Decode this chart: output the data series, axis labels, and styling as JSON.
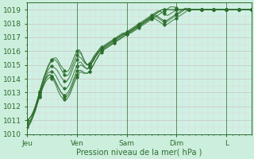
{
  "title": "Pression niveau de la mer( hPa )",
  "fig_bg": "#cceedd",
  "plot_bg": "#d0f0e4",
  "line_color": "#2d6e2d",
  "ylim": [
    1010.0,
    1019.5
  ],
  "yticks": [
    1010,
    1011,
    1012,
    1013,
    1014,
    1015,
    1016,
    1017,
    1018,
    1019
  ],
  "day_labels": [
    "Jeu",
    "Ven",
    "Sam",
    "Dim",
    "L"
  ],
  "day_positions": [
    0,
    24,
    48,
    72,
    96
  ],
  "xlim": [
    0,
    108
  ],
  "n_points": 109,
  "lines": [
    [
      1011.0,
      1011.1,
      1011.3,
      1011.6,
      1012.0,
      1012.5,
      1013.1,
      1013.6,
      1014.1,
      1014.5,
      1014.9,
      1015.2,
      1015.4,
      1015.5,
      1015.5,
      1015.3,
      1015.0,
      1014.8,
      1014.6,
      1014.5,
      1014.6,
      1014.9,
      1015.3,
      1015.7,
      1016.0,
      1016.1,
      1015.9,
      1015.5,
      1015.2,
      1015.0,
      1015.1,
      1015.3,
      1015.5,
      1015.7,
      1015.9,
      1016.0,
      1016.2,
      1016.3,
      1016.4,
      1016.5,
      1016.6,
      1016.7,
      1016.8,
      1016.9,
      1017.0,
      1017.1,
      1017.2,
      1017.2,
      1017.2,
      1017.3,
      1017.3,
      1017.4,
      1017.5,
      1017.6,
      1017.7,
      1017.8,
      1017.9,
      1018.0,
      1018.1,
      1018.2,
      1018.3,
      1018.4,
      1018.5,
      1018.6,
      1018.7,
      1018.8,
      1018.9,
      1019.0,
      1019.1,
      1019.2,
      1019.2,
      1019.2,
      1019.1,
      1019.0,
      1019.0,
      1019.0,
      1019.1,
      1019.1,
      1019.0,
      1019.0,
      1019.0,
      1019.0,
      1019.0,
      1019.0,
      1019.0,
      1019.0,
      1019.0,
      1019.0,
      1019.0,
      1019.0,
      1019.0,
      1019.0,
      1019.0,
      1019.0,
      1019.0,
      1019.0,
      1019.0,
      1019.0,
      1019.0,
      1019.0,
      1019.0,
      1019.0,
      1019.0,
      1019.0,
      1019.0,
      1019.0,
      1019.0,
      1019.0,
      1019.0
    ],
    [
      1011.0,
      1011.1,
      1011.3,
      1011.6,
      1012.0,
      1012.5,
      1013.0,
      1013.5,
      1014.0,
      1014.4,
      1014.8,
      1015.1,
      1015.3,
      1015.4,
      1015.3,
      1015.1,
      1014.8,
      1014.5,
      1014.3,
      1014.2,
      1014.3,
      1014.6,
      1015.0,
      1015.4,
      1015.7,
      1015.9,
      1015.8,
      1015.5,
      1015.2,
      1015.0,
      1015.1,
      1015.3,
      1015.6,
      1015.8,
      1016.0,
      1016.2,
      1016.3,
      1016.4,
      1016.5,
      1016.6,
      1016.7,
      1016.8,
      1016.9,
      1017.0,
      1017.1,
      1017.2,
      1017.3,
      1017.3,
      1017.3,
      1017.4,
      1017.5,
      1017.6,
      1017.7,
      1017.8,
      1017.9,
      1018.0,
      1018.1,
      1018.2,
      1018.3,
      1018.4,
      1018.5,
      1018.6,
      1018.7,
      1018.8,
      1018.9,
      1019.0,
      1019.0,
      1019.0,
      1019.0,
      1019.0,
      1019.0,
      1019.0,
      1019.0,
      1019.0,
      1019.0,
      1019.0,
      1019.0,
      1019.0,
      1019.0,
      1019.0,
      1019.0,
      1019.0,
      1019.0,
      1019.0,
      1019.0,
      1019.0,
      1019.0,
      1019.0,
      1019.0,
      1019.0,
      1019.0,
      1019.0,
      1019.0,
      1019.0,
      1019.0,
      1019.0,
      1019.0,
      1019.0,
      1019.0,
      1019.0,
      1019.0,
      1019.0,
      1019.0,
      1019.0,
      1019.0,
      1019.0,
      1019.0,
      1019.0,
      1019.0
    ],
    [
      1011.0,
      1011.1,
      1011.3,
      1011.6,
      1012.0,
      1012.5,
      1013.0,
      1013.5,
      1013.9,
      1014.3,
      1014.6,
      1014.8,
      1014.9,
      1014.8,
      1014.7,
      1014.5,
      1014.2,
      1014.0,
      1013.8,
      1013.8,
      1014.0,
      1014.3,
      1014.7,
      1015.1,
      1015.4,
      1015.6,
      1015.5,
      1015.3,
      1015.1,
      1015.0,
      1015.0,
      1015.2,
      1015.4,
      1015.7,
      1015.9,
      1016.1,
      1016.2,
      1016.3,
      1016.4,
      1016.5,
      1016.6,
      1016.7,
      1016.8,
      1016.9,
      1017.0,
      1017.1,
      1017.2,
      1017.3,
      1017.3,
      1017.4,
      1017.5,
      1017.6,
      1017.7,
      1017.8,
      1017.9,
      1018.0,
      1018.1,
      1018.2,
      1018.3,
      1018.4,
      1018.5,
      1018.6,
      1018.7,
      1018.8,
      1018.9,
      1019.0,
      1019.0,
      1019.0,
      1019.0,
      1019.0,
      1019.0,
      1019.0,
      1019.0,
      1019.0,
      1019.0,
      1019.0,
      1019.0,
      1019.0,
      1019.0,
      1019.0,
      1019.0,
      1019.0,
      1019.0,
      1019.0,
      1019.0,
      1019.0,
      1019.0,
      1019.0,
      1019.0,
      1019.0,
      1019.0,
      1019.0,
      1019.0,
      1019.0,
      1019.0,
      1019.0,
      1019.0,
      1019.0,
      1019.0,
      1019.0,
      1019.0,
      1019.0,
      1019.0,
      1019.0,
      1019.0,
      1019.0,
      1019.0,
      1019.0,
      1019.0
    ],
    [
      1010.7,
      1010.8,
      1011.0,
      1011.4,
      1011.8,
      1012.3,
      1012.8,
      1013.3,
      1013.7,
      1014.1,
      1014.4,
      1014.5,
      1014.5,
      1014.4,
      1014.2,
      1013.9,
      1013.6,
      1013.4,
      1013.3,
      1013.3,
      1013.5,
      1013.8,
      1014.2,
      1014.6,
      1014.9,
      1015.2,
      1015.2,
      1015.0,
      1014.8,
      1014.7,
      1014.8,
      1015.1,
      1015.3,
      1015.6,
      1015.8,
      1016.0,
      1016.1,
      1016.2,
      1016.4,
      1016.5,
      1016.6,
      1016.7,
      1016.8,
      1016.9,
      1017.0,
      1017.1,
      1017.2,
      1017.3,
      1017.4,
      1017.5,
      1017.6,
      1017.7,
      1017.8,
      1017.9,
      1018.0,
      1018.1,
      1018.2,
      1018.3,
      1018.4,
      1018.5,
      1018.6,
      1018.7,
      1018.8,
      1018.9,
      1018.9,
      1018.8,
      1018.7,
      1018.6,
      1018.6,
      1018.7,
      1018.8,
      1018.9,
      1019.0,
      1019.0,
      1019.0,
      1019.0,
      1019.0,
      1019.0,
      1019.0,
      1019.0,
      1019.0,
      1019.0,
      1019.0,
      1019.0,
      1019.0,
      1019.0,
      1019.0,
      1019.0,
      1019.0,
      1019.0,
      1019.0,
      1019.0,
      1019.0,
      1019.0,
      1019.0,
      1019.0,
      1019.0,
      1019.0,
      1019.0,
      1019.0,
      1019.0,
      1019.0,
      1019.0,
      1019.0,
      1019.0,
      1019.0,
      1019.0,
      1019.0,
      1019.0
    ],
    [
      1010.5,
      1010.6,
      1010.9,
      1011.3,
      1011.7,
      1012.2,
      1012.7,
      1013.2,
      1013.6,
      1014.0,
      1014.2,
      1014.3,
      1014.2,
      1014.0,
      1013.7,
      1013.4,
      1013.1,
      1012.9,
      1012.8,
      1012.9,
      1013.1,
      1013.4,
      1013.8,
      1014.2,
      1014.6,
      1014.9,
      1015.0,
      1014.9,
      1014.8,
      1014.7,
      1014.9,
      1015.1,
      1015.3,
      1015.6,
      1015.8,
      1016.0,
      1016.1,
      1016.2,
      1016.3,
      1016.4,
      1016.5,
      1016.6,
      1016.7,
      1016.8,
      1016.9,
      1017.0,
      1017.1,
      1017.2,
      1017.3,
      1017.4,
      1017.5,
      1017.6,
      1017.7,
      1017.8,
      1017.9,
      1018.0,
      1018.1,
      1018.2,
      1018.3,
      1018.4,
      1018.5,
      1018.6,
      1018.6,
      1018.5,
      1018.4,
      1018.3,
      1018.2,
      1018.2,
      1018.3,
      1018.4,
      1018.5,
      1018.6,
      1018.7,
      1018.8,
      1018.9,
      1019.0,
      1019.0,
      1019.0,
      1019.0,
      1019.0,
      1019.0,
      1019.0,
      1019.0,
      1019.0,
      1019.0,
      1019.0,
      1019.0,
      1019.0,
      1019.0,
      1019.0,
      1019.0,
      1019.0,
      1019.0,
      1019.0,
      1019.0,
      1019.0,
      1019.0,
      1019.0,
      1019.0,
      1019.0,
      1019.0,
      1019.0,
      1019.0,
      1019.0,
      1019.0,
      1019.0,
      1019.0,
      1019.0,
      1019.0
    ],
    [
      1010.8,
      1010.9,
      1011.1,
      1011.5,
      1011.9,
      1012.4,
      1012.9,
      1013.3,
      1013.7,
      1014.0,
      1014.2,
      1014.3,
      1014.2,
      1014.0,
      1013.7,
      1013.4,
      1013.1,
      1012.9,
      1012.7,
      1012.7,
      1012.9,
      1013.2,
      1013.6,
      1014.0,
      1014.3,
      1014.6,
      1014.6,
      1014.5,
      1014.4,
      1014.4,
      1014.5,
      1014.7,
      1015.0,
      1015.3,
      1015.6,
      1015.8,
      1016.0,
      1016.1,
      1016.2,
      1016.3,
      1016.4,
      1016.5,
      1016.6,
      1016.7,
      1016.8,
      1016.9,
      1017.0,
      1017.1,
      1017.2,
      1017.3,
      1017.4,
      1017.5,
      1017.6,
      1017.7,
      1017.8,
      1017.9,
      1018.0,
      1018.1,
      1018.2,
      1018.3,
      1018.4,
      1018.5,
      1018.5,
      1018.4,
      1018.3,
      1018.2,
      1018.1,
      1018.1,
      1018.2,
      1018.3,
      1018.4,
      1018.5,
      1018.6,
      1018.7,
      1018.8,
      1018.9,
      1019.0,
      1019.0,
      1019.0,
      1019.0,
      1019.0,
      1019.0,
      1019.0,
      1019.0,
      1019.0,
      1019.0,
      1019.0,
      1019.0,
      1019.0,
      1019.0,
      1019.0,
      1019.0,
      1019.0,
      1019.0,
      1019.0,
      1019.0,
      1019.0,
      1019.0,
      1019.0,
      1019.0,
      1019.0,
      1019.0,
      1019.0,
      1019.0,
      1019.0,
      1019.0,
      1019.0,
      1019.0,
      1019.0
    ],
    [
      1010.6,
      1010.7,
      1011.0,
      1011.3,
      1011.7,
      1012.2,
      1012.7,
      1013.1,
      1013.5,
      1013.8,
      1014.0,
      1014.1,
      1014.0,
      1013.8,
      1013.5,
      1013.1,
      1012.8,
      1012.6,
      1012.5,
      1012.5,
      1012.7,
      1013.0,
      1013.4,
      1013.8,
      1014.1,
      1014.4,
      1014.5,
      1014.4,
      1014.4,
      1014.4,
      1014.5,
      1014.8,
      1015.0,
      1015.3,
      1015.5,
      1015.8,
      1015.9,
      1016.1,
      1016.2,
      1016.3,
      1016.4,
      1016.5,
      1016.6,
      1016.7,
      1016.8,
      1016.9,
      1017.0,
      1017.1,
      1017.2,
      1017.3,
      1017.4,
      1017.5,
      1017.6,
      1017.7,
      1017.8,
      1017.9,
      1018.0,
      1018.1,
      1018.2,
      1018.3,
      1018.4,
      1018.4,
      1018.3,
      1018.2,
      1018.1,
      1018.0,
      1017.9,
      1017.9,
      1018.0,
      1018.1,
      1018.2,
      1018.3,
      1018.4,
      1018.5,
      1018.6,
      1018.7,
      1018.8,
      1018.9,
      1019.0,
      1019.0,
      1019.0,
      1019.0,
      1019.0,
      1019.0,
      1019.0,
      1019.0,
      1019.0,
      1019.0,
      1019.0,
      1019.0,
      1019.0,
      1019.0,
      1019.0,
      1019.0,
      1019.0,
      1019.0,
      1019.0,
      1019.0,
      1019.0,
      1019.0,
      1019.0,
      1019.0,
      1019.0,
      1019.0,
      1019.0,
      1019.0,
      1019.0,
      1019.0,
      1019.0
    ]
  ]
}
